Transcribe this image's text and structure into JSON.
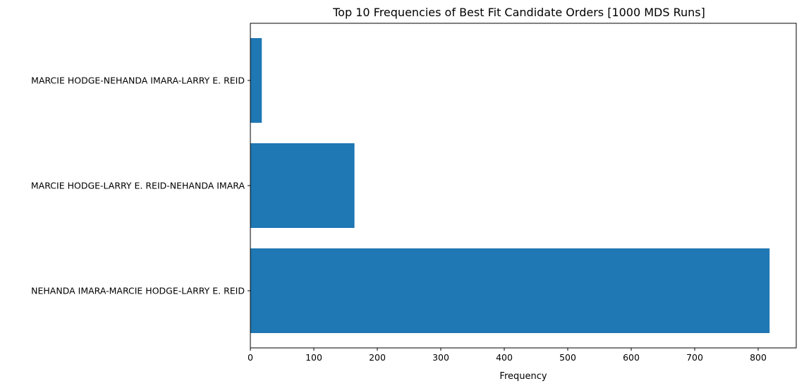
{
  "chart_data": {
    "type": "bar",
    "orientation": "horizontal",
    "title": "Top 10 Frequencies of Best Fit Candidate Orders [1000 MDS Runs]",
    "xlabel": "Frequency",
    "ylabel": "",
    "categories": [
      "NEHANDA IMARA-MARCIE HODGE-LARRY E. REID",
      "MARCIE HODGE-LARRY E. REID-NEHANDA IMARA",
      "MARCIE HODGE-NEHANDA IMARA-LARRY E. REID"
    ],
    "values": [
      818,
      164,
      18
    ],
    "xlim": [
      0,
      860
    ],
    "xticks": [
      0,
      100,
      200,
      300,
      400,
      500,
      600,
      700,
      800
    ],
    "grid": false,
    "legend": "none",
    "bar_color": "#1f77b4"
  }
}
